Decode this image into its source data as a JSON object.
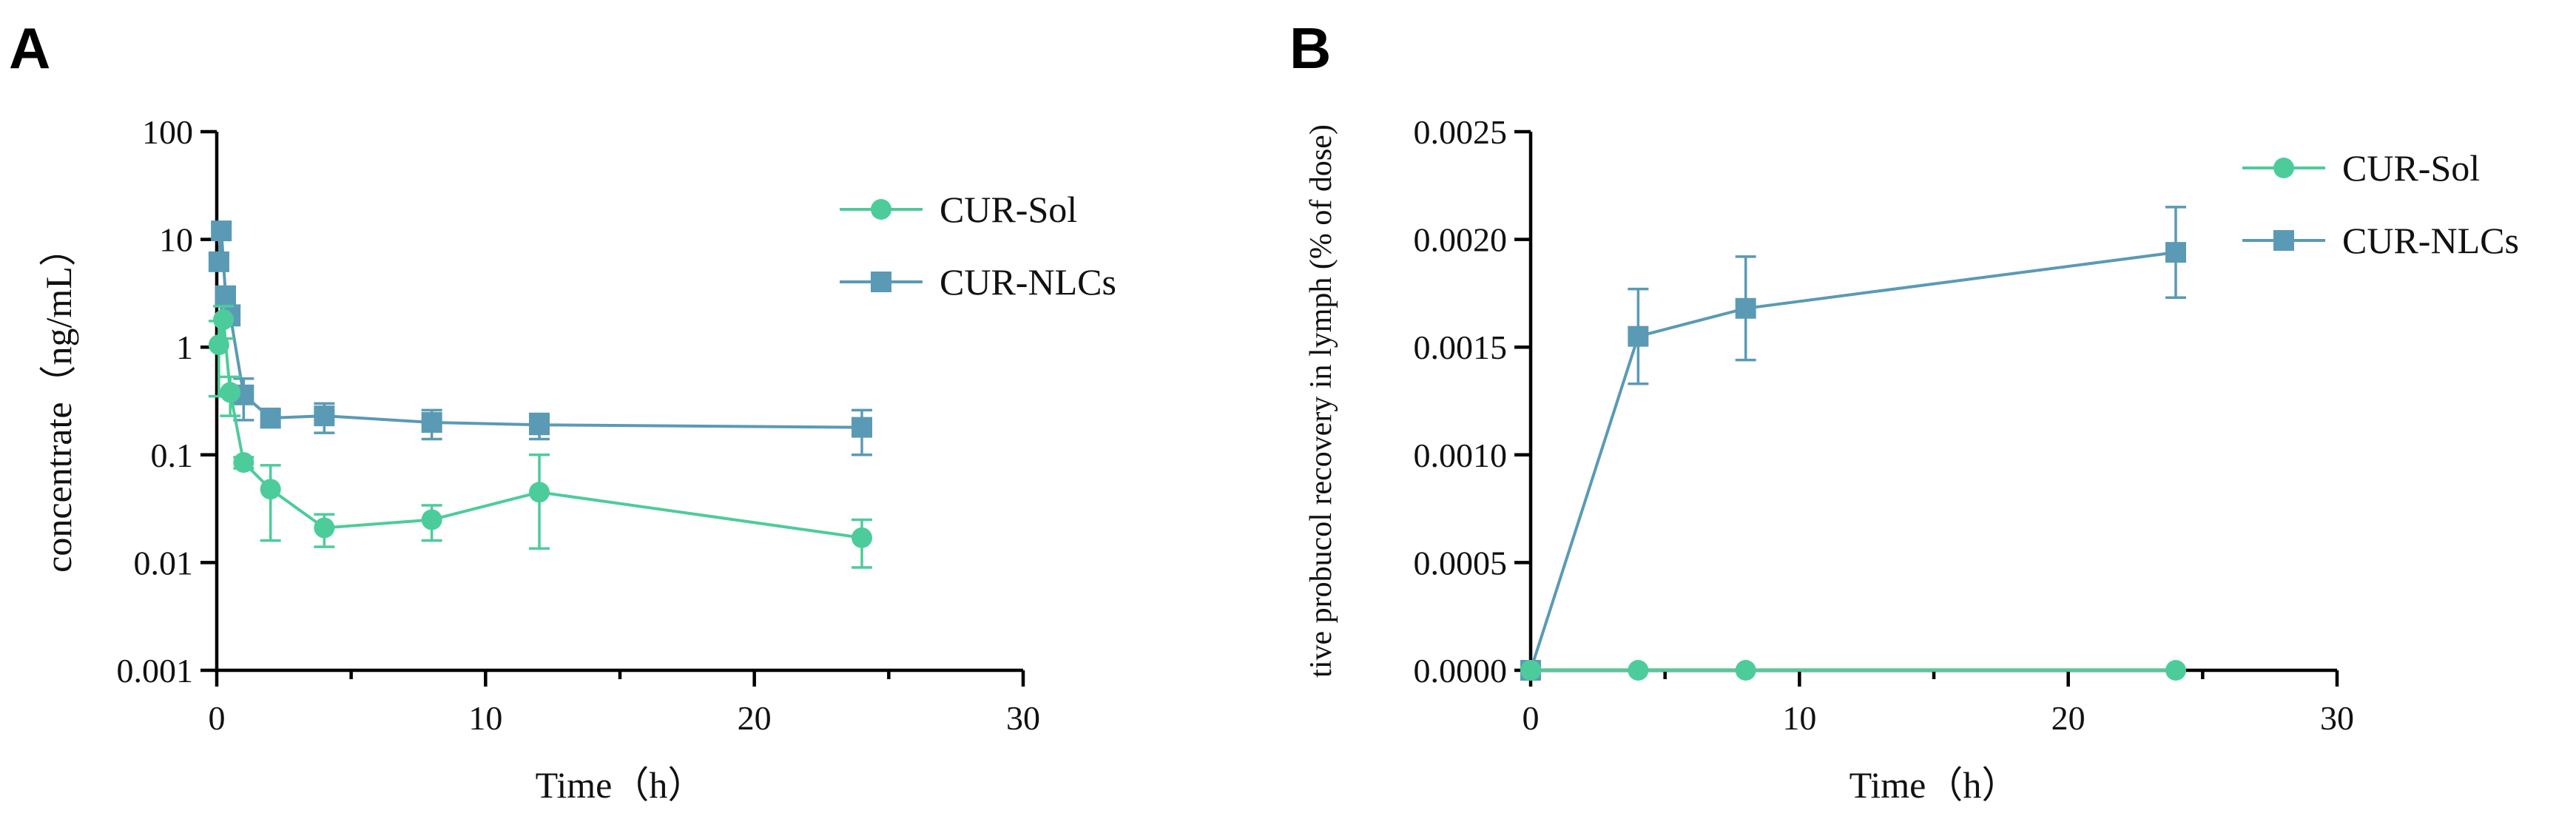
{
  "colors": {
    "cur_sol": "#4dcc9b",
    "cur_nlcs": "#5a9ab5",
    "axis": "#000000"
  },
  "chart_data": [
    {
      "panel_label": "A",
      "type": "line",
      "yscale": "log",
      "xlabel": "Time（h）",
      "ylabel": "concentrate（ng/mL）",
      "xlim": [
        0,
        30
      ],
      "ylim": [
        0.001,
        100
      ],
      "xticks": [
        0,
        10,
        20,
        30
      ],
      "xtick_labels": [
        "0",
        "10",
        "20",
        "30"
      ],
      "yticks": [
        0.001,
        0.01,
        0.1,
        1,
        10,
        100
      ],
      "ytick_labels": [
        "0.001",
        "0.01",
        "0.1",
        "1",
        "10",
        "100"
      ],
      "legend": [
        "CUR-Sol",
        "CUR-NLCs"
      ],
      "legend_position": "top-right",
      "series": [
        {
          "name": "CUR-Sol",
          "marker": "circle",
          "x": [
            0.08,
            0.25,
            0.5,
            1,
            2,
            4,
            8,
            12,
            24
          ],
          "y": [
            1.05,
            1.8,
            0.38,
            0.085,
            0.048,
            0.021,
            0.025,
            0.045,
            0.017
          ],
          "err": [
            0.7,
            0.6,
            0.15,
            0.01,
            0.032,
            0.007,
            0.009,
            0.055,
            0.008
          ]
        },
        {
          "name": "CUR-NLCs",
          "marker": "square",
          "x": [
            0.08,
            0.17,
            0.33,
            0.5,
            1,
            2,
            4,
            8,
            12,
            24
          ],
          "y": [
            6.2,
            12.0,
            3.0,
            2.0,
            0.36,
            0.22,
            0.23,
            0.2,
            0.19,
            0.18
          ],
          "err": [
            1.0,
            2.0,
            0.6,
            0.4,
            0.15,
            0.04,
            0.07,
            0.06,
            0.05,
            0.08
          ]
        }
      ]
    },
    {
      "panel_label": "B",
      "type": "line",
      "yscale": "linear",
      "xlabel": "Time（h）",
      "ylabel": "tive probucol recovery in lymph (% of dose)",
      "xlim": [
        0,
        30
      ],
      "ylim": [
        0,
        0.0025
      ],
      "xticks": [
        0,
        10,
        20,
        30
      ],
      "xtick_labels": [
        "0",
        "10",
        "20",
        "30"
      ],
      "yticks": [
        0,
        0.0005,
        0.001,
        0.0015,
        0.002,
        0.0025
      ],
      "ytick_labels": [
        "0.0000",
        "0.0005",
        "0.0010",
        "0.0015",
        "0.0020",
        "0.0025"
      ],
      "legend": [
        "CUR-Sol",
        "CUR-NLCs"
      ],
      "legend_position": "top-right",
      "series": [
        {
          "name": "CUR-Sol",
          "marker": "circle",
          "x": [
            0,
            4,
            8,
            24
          ],
          "y": [
            0,
            0,
            0,
            0
          ],
          "err": [
            0,
            0,
            0,
            0
          ]
        },
        {
          "name": "CUR-NLCs",
          "marker": "square",
          "x": [
            0,
            4,
            8,
            24
          ],
          "y": [
            0,
            0.00155,
            0.00168,
            0.00194
          ],
          "err": [
            0,
            0.00022,
            0.00024,
            0.00021
          ]
        }
      ]
    }
  ]
}
